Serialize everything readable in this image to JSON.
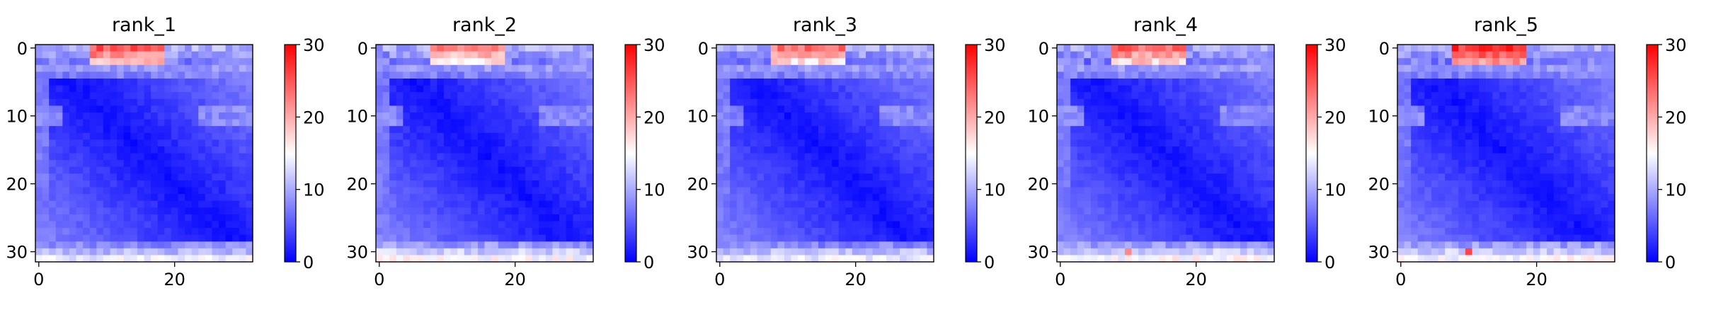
{
  "chart_data": [
    {
      "type": "heatmap",
      "title": "rank_1",
      "rows": 32,
      "cols": 32,
      "xticks": [
        0,
        20
      ],
      "yticks": [
        0,
        10,
        20,
        30
      ],
      "colorbar": {
        "range": [
          0,
          30
        ],
        "ticks": [
          0,
          10,
          20,
          30
        ],
        "colormap": "bwr"
      },
      "features": {
        "top_hot_max": 25,
        "top_hot_cols": [
          8,
          18
        ],
        "bottom_edge": 14,
        "mid_band_rows": [
          9,
          11
        ],
        "hot_spot": null
      }
    },
    {
      "type": "heatmap",
      "title": "rank_2",
      "rows": 32,
      "cols": 32,
      "xticks": [
        0,
        20
      ],
      "yticks": [
        0,
        10,
        20,
        30
      ],
      "colorbar": {
        "range": [
          0,
          30
        ],
        "ticks": [
          0,
          10,
          20,
          30
        ],
        "colormap": "bwr"
      },
      "features": {
        "top_hot_max": 22,
        "top_hot_cols": [
          8,
          18
        ],
        "bottom_edge": 15,
        "mid_band_rows": [
          9,
          11
        ],
        "hot_spot": null
      }
    },
    {
      "type": "heatmap",
      "title": "rank_3",
      "rows": 32,
      "cols": 32,
      "xticks": [
        0,
        20
      ],
      "yticks": [
        0,
        10,
        20,
        30
      ],
      "colorbar": {
        "range": [
          0,
          30
        ],
        "ticks": [
          0,
          10,
          20,
          30
        ],
        "colormap": "bwr"
      },
      "features": {
        "top_hot_max": 23,
        "top_hot_cols": [
          8,
          18
        ],
        "bottom_edge": 14,
        "mid_band_rows": [
          9,
          11
        ],
        "hot_spot": null
      }
    },
    {
      "type": "heatmap",
      "title": "rank_4",
      "rows": 32,
      "cols": 32,
      "xticks": [
        0,
        20
      ],
      "yticks": [
        0,
        10,
        20,
        30
      ],
      "colorbar": {
        "range": [
          0,
          30
        ],
        "ticks": [
          0,
          10,
          20,
          30
        ],
        "colormap": "bwr"
      },
      "features": {
        "top_hot_max": 24,
        "top_hot_cols": [
          8,
          18
        ],
        "bottom_edge": 15,
        "mid_band_rows": [
          9,
          11
        ],
        "hot_spot": {
          "row": 30,
          "col": 10,
          "value": 22
        }
      }
    },
    {
      "type": "heatmap",
      "title": "rank_5",
      "rows": 32,
      "cols": 32,
      "xticks": [
        0,
        20
      ],
      "yticks": [
        0,
        10,
        20,
        30
      ],
      "colorbar": {
        "range": [
          0,
          30
        ],
        "ticks": [
          0,
          10,
          20,
          30
        ],
        "colormap": "bwr"
      },
      "features": {
        "top_hot_max": 27,
        "top_hot_cols": [
          8,
          18
        ],
        "bottom_edge": 15,
        "mid_band_rows": [
          9,
          11
        ],
        "hot_spot": {
          "row": 30,
          "col": 10,
          "value": 26
        }
      }
    }
  ]
}
